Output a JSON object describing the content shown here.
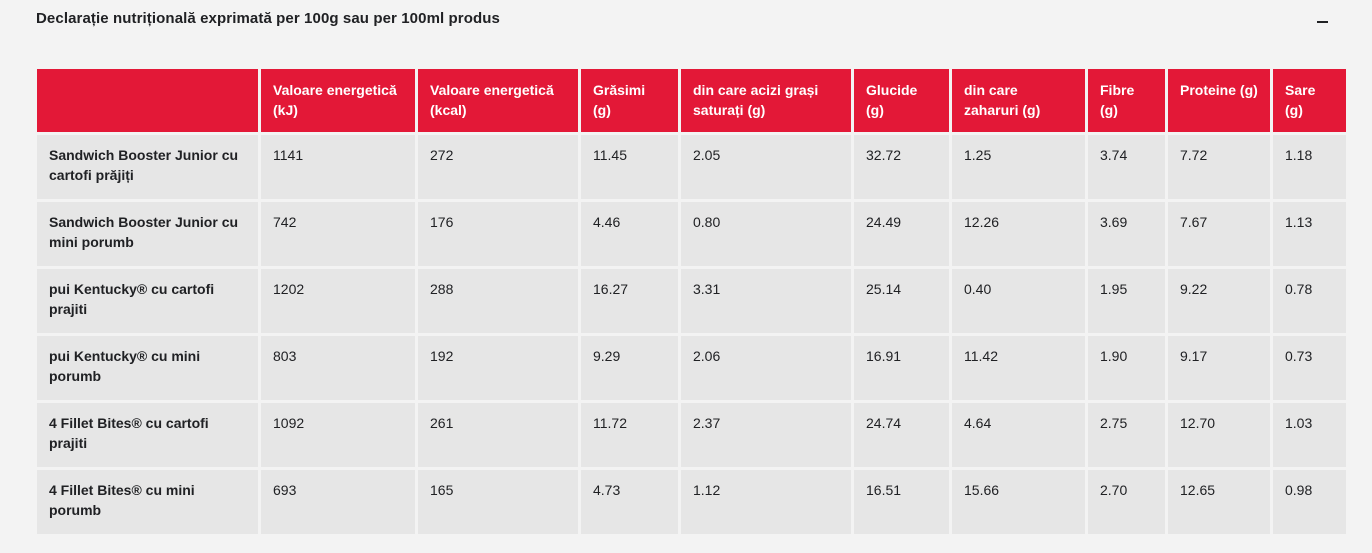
{
  "panel": {
    "title": "Declarație nutrițională exprimată per 100g sau per 100ml produs",
    "collapse_icon": "minus-icon"
  },
  "table": {
    "headers": [
      "",
      "Valoare energetică (kJ)",
      "Valoare energetică (kcal)",
      "Grăsimi (g)",
      "din care acizi grași saturați (g)",
      "Glucide (g)",
      "din care zaharuri (g)",
      "Fibre (g)",
      "Proteine (g)",
      "Sare (g)"
    ],
    "rows": [
      [
        "Sandwich Booster Junior cu cartofi prăjiți",
        "1141",
        "272",
        "11.45",
        "2.05",
        "32.72",
        "1.25",
        "3.74",
        "7.72",
        "1.18"
      ],
      [
        "Sandwich Booster Junior cu mini porumb",
        "742",
        "176",
        "4.46",
        "0.80",
        "24.49",
        "12.26",
        "3.69",
        "7.67",
        "1.13"
      ],
      [
        "pui Kentucky® cu cartofi prajiti",
        "1202",
        "288",
        "16.27",
        "3.31",
        "25.14",
        "0.40",
        "1.95",
        "9.22",
        "0.78"
      ],
      [
        "pui Kentucky® cu mini porumb",
        "803",
        "192",
        "9.29",
        "2.06",
        "16.91",
        "11.42",
        "1.90",
        "9.17",
        "0.73"
      ],
      [
        "4 Fillet Bites® cu cartofi prajiti",
        "1092",
        "261",
        "11.72",
        "2.37",
        "24.74",
        "4.64",
        "2.75",
        "12.70",
        "1.03"
      ],
      [
        "4 Fillet Bites® cu mini porumb",
        "693",
        "165",
        "4.73",
        "1.12",
        "16.51",
        "15.66",
        "2.70",
        "12.65",
        "0.98"
      ]
    ]
  },
  "colors": {
    "header_bg": "#e31837",
    "cell_bg": "#e6e6e6",
    "page_bg": "#f3f3f3"
  }
}
